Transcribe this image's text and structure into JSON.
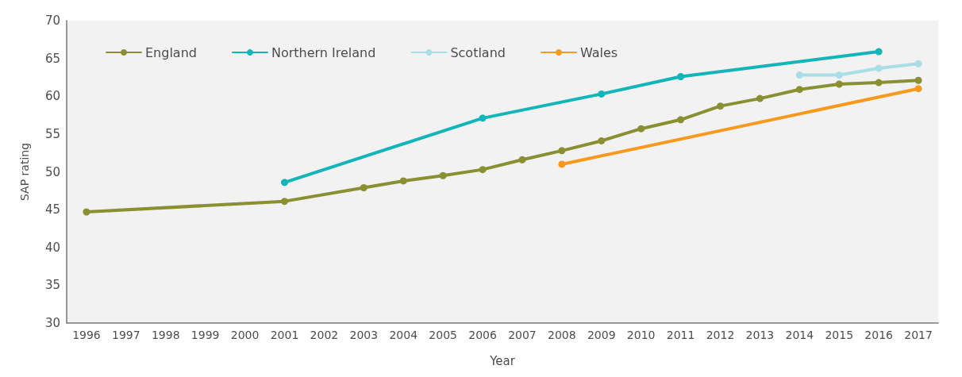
{
  "chart_data": {
    "type": "line",
    "xlabel": "Year",
    "ylabel": "SAP rating",
    "categories": [
      "1996",
      "1997",
      "1998",
      "1999",
      "2000",
      "2001",
      "2002",
      "2003",
      "2004",
      "2005",
      "2006",
      "2007",
      "2008",
      "2009",
      "2010",
      "2011",
      "2012",
      "2013",
      "2014",
      "2015",
      "2016",
      "2017"
    ],
    "series": [
      {
        "name": "England",
        "color": "#8a8f32",
        "values": [
          44.7,
          null,
          null,
          null,
          null,
          46.1,
          null,
          47.9,
          48.8,
          49.5,
          50.3,
          51.6,
          52.8,
          54.1,
          55.7,
          56.9,
          58.7,
          59.7,
          60.9,
          61.6,
          61.8,
          62.1
        ]
      },
      {
        "name": "Northern Ireland",
        "color": "#12b5b8",
        "values": [
          null,
          null,
          null,
          null,
          null,
          48.6,
          null,
          null,
          null,
          null,
          57.1,
          null,
          null,
          60.3,
          null,
          62.6,
          null,
          null,
          null,
          null,
          65.9,
          null
        ]
      },
      {
        "name": "Scotland",
        "color": "#a8dfe6",
        "values": [
          null,
          null,
          null,
          null,
          null,
          null,
          null,
          null,
          null,
          null,
          null,
          null,
          null,
          null,
          null,
          null,
          null,
          null,
          62.8,
          62.8,
          63.7,
          64.3
        ]
      },
      {
        "name": "Wales",
        "color": "#f7991c",
        "values": [
          null,
          null,
          null,
          null,
          null,
          null,
          null,
          null,
          null,
          null,
          null,
          null,
          51.0,
          null,
          null,
          null,
          null,
          null,
          null,
          null,
          null,
          61.0
        ]
      }
    ],
    "ylim": [
      30,
      70
    ],
    "yticks": [
      30,
      35,
      40,
      45,
      50,
      55,
      60,
      65,
      70
    ],
    "grid": false,
    "legend": "top left",
    "marker": "circle",
    "line_style": "solid"
  }
}
